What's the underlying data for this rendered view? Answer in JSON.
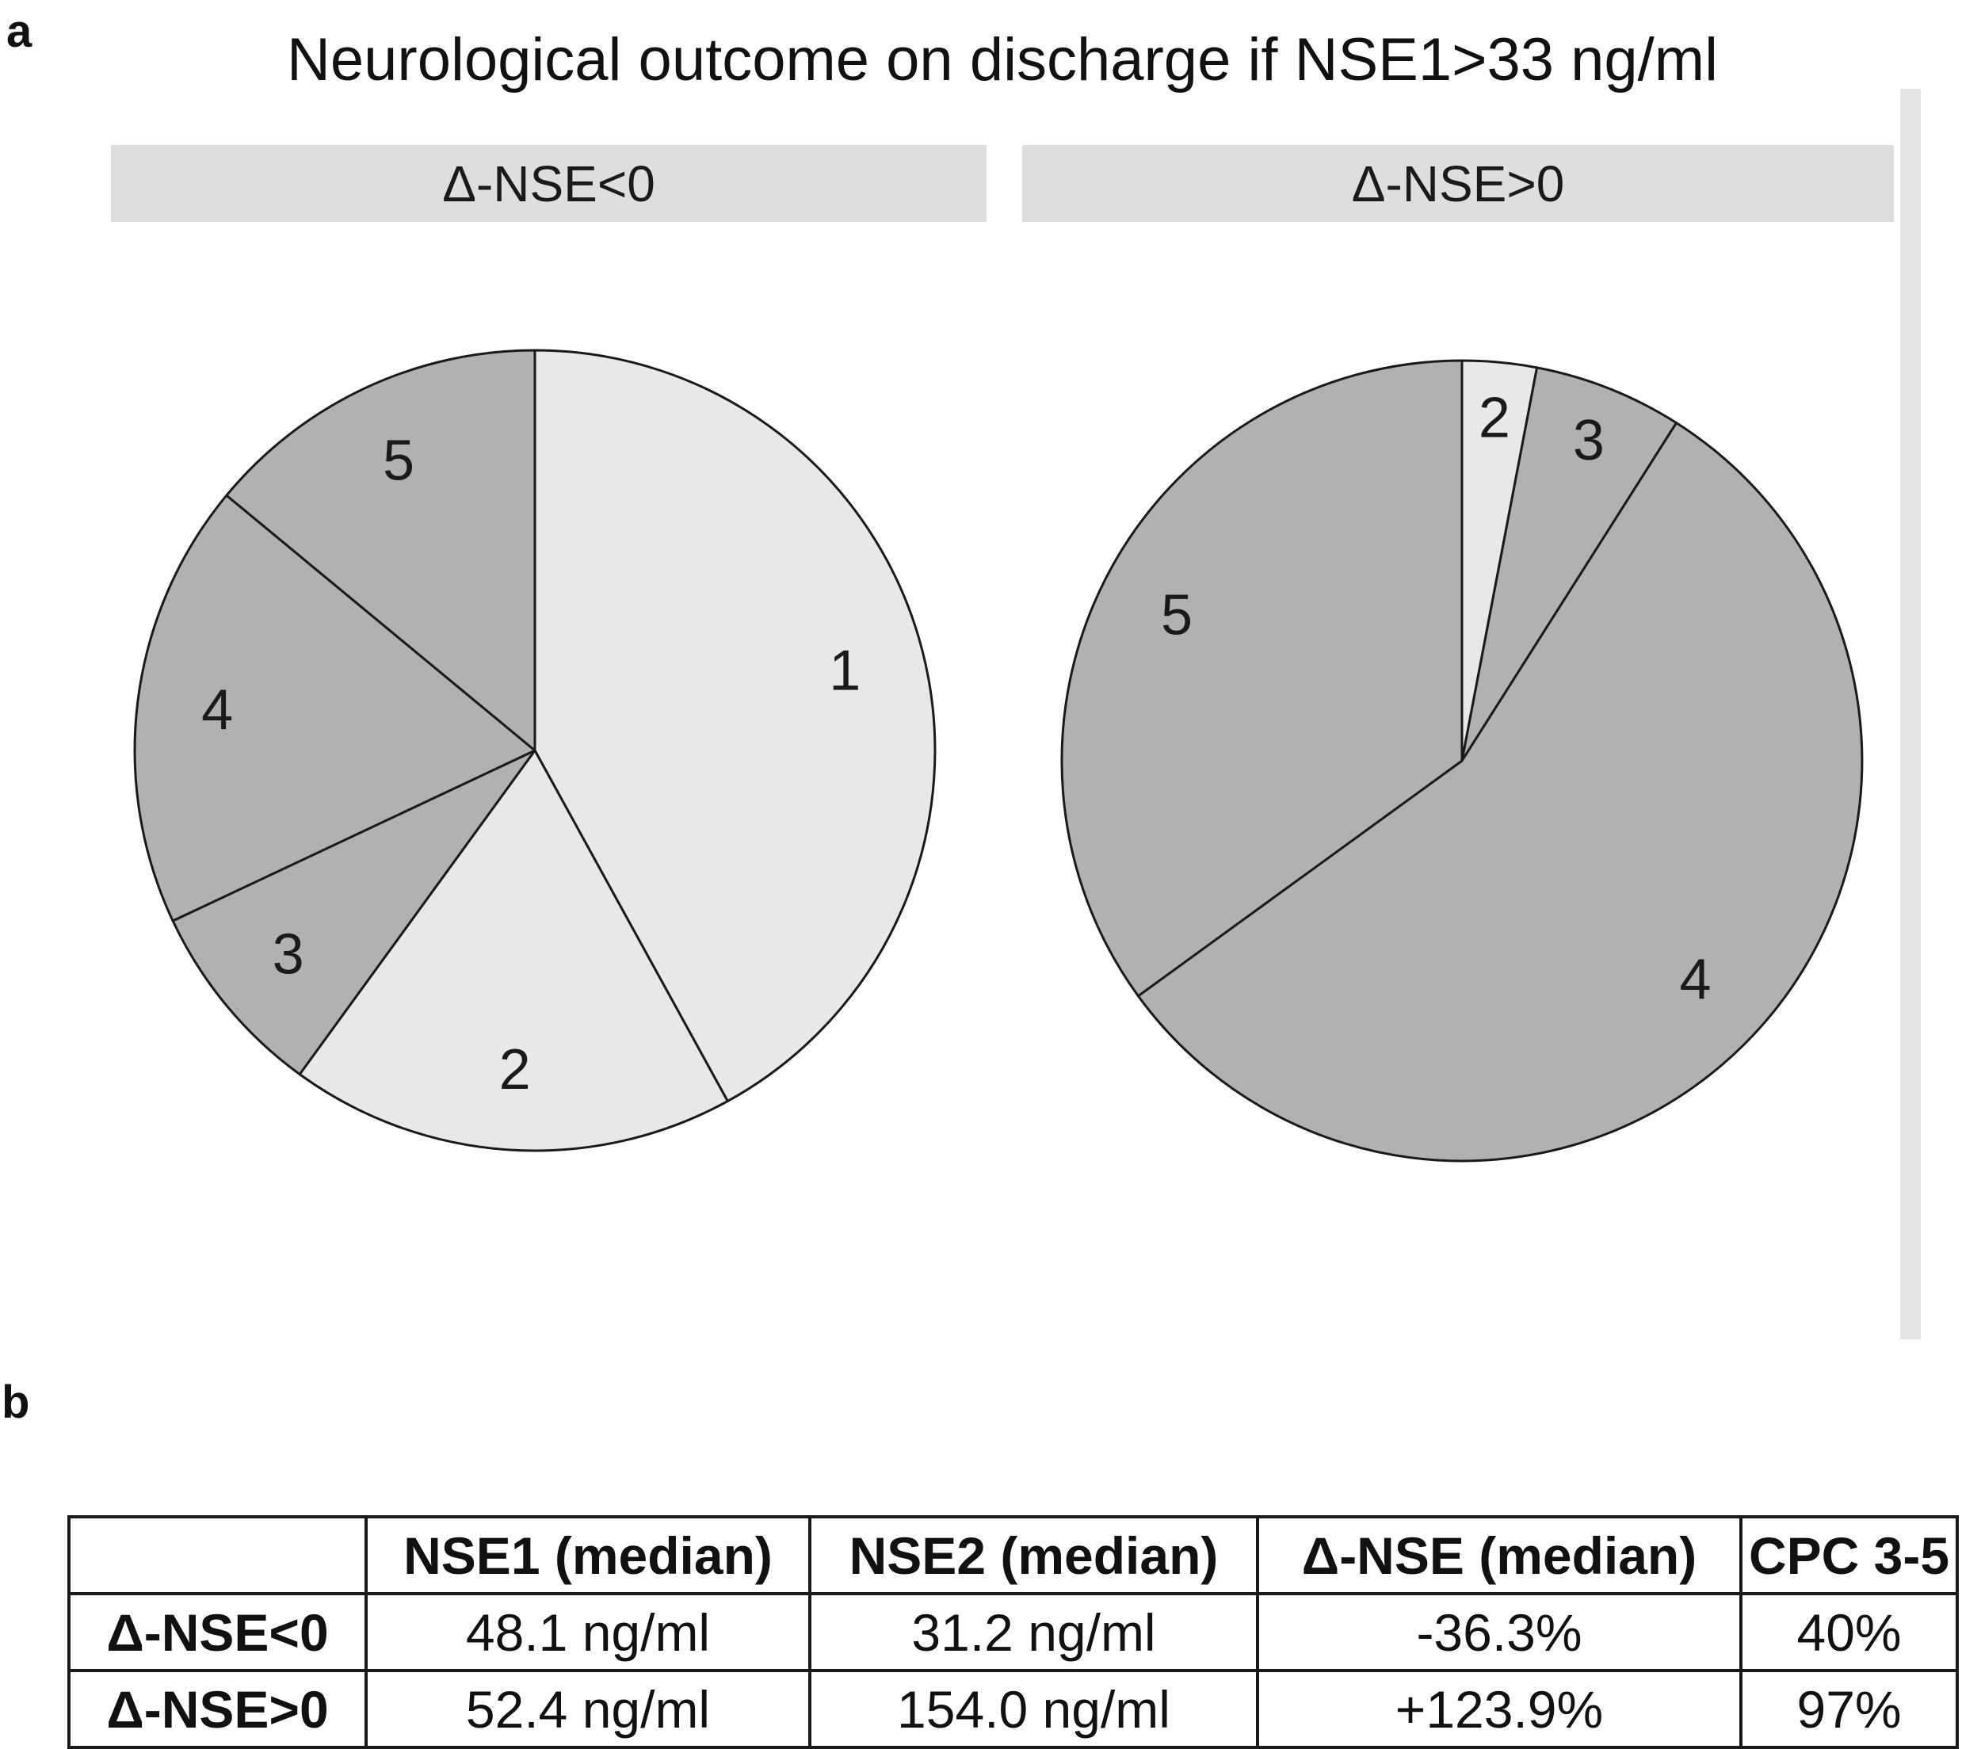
{
  "panels": {
    "a": "a",
    "b": "b"
  },
  "title": "Neurological outcome on discharge if NSE1>33 ng/ml",
  "chart_data": [
    {
      "type": "pie",
      "title": "Δ-NSE<0",
      "start_angle_deg": 0,
      "direction": "clockwise",
      "value_unit": "percent_estimated",
      "stroke": "#1a1a1a",
      "slices": [
        {
          "label": "1",
          "value": 42,
          "color": "#e8e8e8"
        },
        {
          "label": "2",
          "value": 18,
          "color": "#e8e8e8"
        },
        {
          "label": "3",
          "value": 8,
          "color": "#b1b1b1"
        },
        {
          "label": "4",
          "value": 18,
          "color": "#b1b1b1"
        },
        {
          "label": "5",
          "value": 14,
          "color": "#b1b1b1"
        }
      ]
    },
    {
      "type": "pie",
      "title": "Δ-NSE>0",
      "start_angle_deg": 0,
      "direction": "clockwise",
      "value_unit": "percent_estimated",
      "stroke": "#1a1a1a",
      "slices": [
        {
          "label": "2",
          "value": 3,
          "color": "#e8e8e8"
        },
        {
          "label": "3",
          "value": 6,
          "color": "#b1b1b1"
        },
        {
          "label": "4",
          "value": 56,
          "color": "#b1b1b1"
        },
        {
          "label": "5",
          "value": 35,
          "color": "#b1b1b1"
        }
      ]
    }
  ],
  "table": {
    "headers": [
      "",
      "NSE1 (median)",
      "NSE2 (median)",
      "Δ-NSE (median)",
      "CPC 3-5"
    ],
    "rows": [
      [
        "Δ-NSE<0",
        "48.1 ng/ml",
        "31.2 ng/ml",
        "-36.3%",
        "40%"
      ],
      [
        "Δ-NSE>0",
        "52.4 ng/ml",
        "154.0 ng/ml",
        "+123.9%",
        "97%"
      ]
    ]
  },
  "colors": {
    "slice_light": "#e8e8e8",
    "slice_dark": "#b1b1b1",
    "header_bar": "#dedede",
    "stroke": "#1a1a1a"
  }
}
